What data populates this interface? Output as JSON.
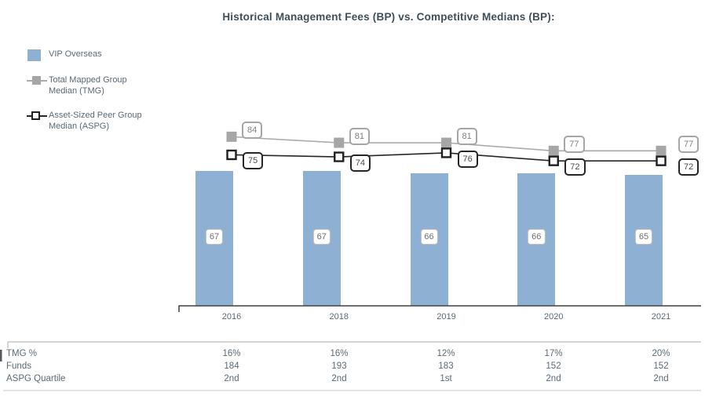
{
  "title": "Historical Management Fees (BP) vs. Competitive Medians (BP):",
  "legend": {
    "items": [
      {
        "label": "VIP Overseas",
        "swatch": "blue-bar-square",
        "color": "#8EB1D3"
      },
      {
        "label": "Total Mapped Group\nMedian (TMG)",
        "swatch": "gray-filled-square-on-line",
        "color": "#A6A6A6"
      },
      {
        "label": "Asset-Sized Peer Group\nMedian (ASPG)",
        "swatch": "black-open-square-on-line",
        "color": "#262626"
      }
    ]
  },
  "chart_data": {
    "type": "bar",
    "combo": "bar+line",
    "title": "Historical Management Fees (BP) vs. Competitive Medians (BP):",
    "categories": [
      "2016",
      "2018",
      "2019",
      "2020",
      "2021"
    ],
    "series": [
      {
        "name": "VIP Overseas",
        "type": "bar",
        "color": "#8EB1D3",
        "values": [
          67,
          67,
          66,
          66,
          65
        ]
      },
      {
        "name": "Total Mapped Group Median (TMG)",
        "type": "line",
        "marker": "filled-square",
        "color": "#ABABAB",
        "values": [
          84,
          81,
          81,
          77,
          77
        ]
      },
      {
        "name": "Asset-Sized Peer Group Median (ASPG)",
        "type": "line",
        "marker": "open-square",
        "color": "#262626",
        "values": [
          75,
          74,
          76,
          72,
          72
        ]
      }
    ],
    "data_labels": true,
    "xlabel": "",
    "ylabel": "",
    "ylim": [
      0,
      95
    ],
    "grid": false,
    "legend_position": "top-left"
  },
  "table": {
    "rows": [
      {
        "label": "TMG %",
        "values": [
          "16%",
          "16%",
          "12%",
          "17%",
          "20%"
        ]
      },
      {
        "label": "Funds",
        "values": [
          "184",
          "193",
          "183",
          "152",
          "152"
        ]
      },
      {
        "label": "ASPG Quartile",
        "values": [
          "2nd",
          "2nd",
          "1st",
          "2nd",
          "2nd"
        ]
      }
    ]
  },
  "colors": {
    "bar": "#8EB1D3",
    "tmg_line": "#ABABAB",
    "aspg_line": "#262626",
    "title_text": "#3F4E58",
    "body_text": "#5A6A76",
    "axis": "#404040"
  }
}
